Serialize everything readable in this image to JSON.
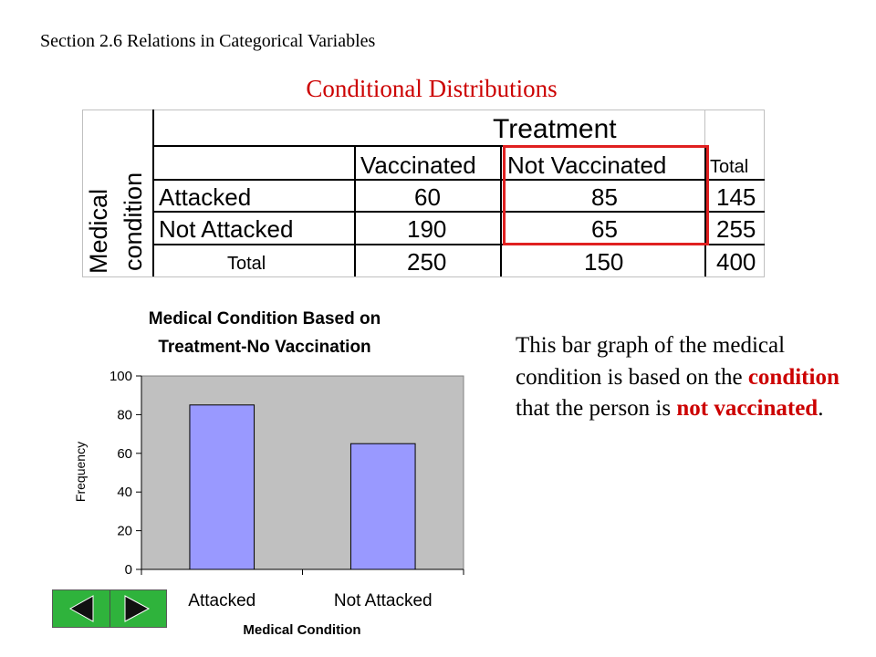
{
  "header": {
    "section": "Section 2.6  Relations in Categorical Variables",
    "title": "Conditional Distributions"
  },
  "table": {
    "col_group_label": "Treatment",
    "row_group_label_line1": "Medical",
    "row_group_label_line2": "condition",
    "columns": [
      "Vaccinated",
      "Not Vaccinated",
      "Total"
    ],
    "rows": [
      {
        "label": "Attacked",
        "values": [
          "60",
          "85",
          "145"
        ]
      },
      {
        "label": "Not Attacked",
        "values": [
          "190",
          "65",
          "255"
        ]
      },
      {
        "label": "Total",
        "values": [
          "250",
          "150",
          "400"
        ]
      }
    ],
    "highlight_color": "#e02020"
  },
  "chart_data": {
    "type": "bar",
    "title": "Medical Condition Based on Treatment-No Vaccination",
    "title_line1": "Medical Condition Based on",
    "title_line2": "Treatment-No Vaccination",
    "categories": [
      "Attacked",
      "Not Attacked"
    ],
    "values": [
      85,
      65
    ],
    "xlabel": "Medical Condition",
    "ylabel": "Frequency",
    "ylim": [
      0,
      100
    ],
    "yticks": [
      0,
      20,
      40,
      60,
      80,
      100
    ],
    "grid": false,
    "legend": "none",
    "bar_color": "#9999ff",
    "plot_background": "#c0c0c0"
  },
  "description": {
    "part1": "This bar graph of the medical condition is based on the ",
    "highlight1": "condition",
    "part2": " that the person is ",
    "highlight2": "not vaccinated",
    "part3": "."
  },
  "nav": {
    "prev_icon": "triangle-left-icon",
    "next_icon": "triangle-right-icon",
    "color": "#2fb33c"
  }
}
